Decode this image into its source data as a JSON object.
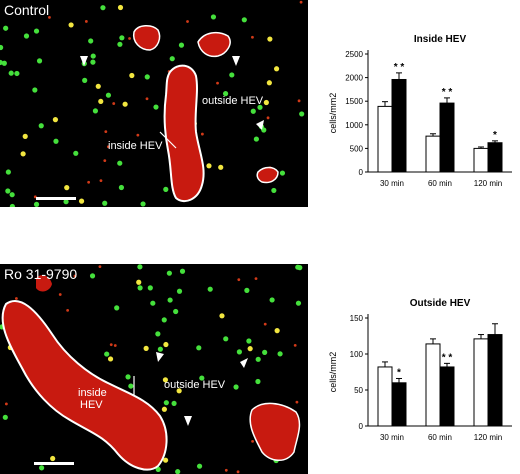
{
  "colors": {
    "nucleus": "#45e03c",
    "hev_red": "#c81a10",
    "outline": "#ffffff",
    "bar_black": "#000000",
    "bar_white": "#ffffff"
  },
  "micrographs": [
    {
      "label": "Control",
      "annotations": {
        "inside": "inside HEV",
        "outside": "outside HEV"
      }
    },
    {
      "label": "Ro 31-9790",
      "annotations": {
        "inside": "inside\nHEV",
        "outside": "outside HEV"
      }
    }
  ],
  "chart_data": [
    {
      "type": "bar",
      "title": "Inside HEV",
      "ylabel": "cells/mm2",
      "ylim": [
        0,
        2500
      ],
      "yticks": [
        0,
        500,
        1000,
        1500,
        2000,
        2500
      ],
      "categories": [
        "30 min",
        "60 min",
        "120 min"
      ],
      "series": [
        {
          "color": "#ffffff",
          "values": [
            1390,
            760,
            500
          ],
          "errors": [
            100,
            50,
            30
          ]
        },
        {
          "color": "#000000",
          "values": [
            1960,
            1460,
            620
          ],
          "errors": [
            140,
            110,
            40
          ]
        }
      ],
      "significance": [
        "* *",
        "* *",
        "*"
      ]
    },
    {
      "type": "bar",
      "title": "Outside HEV",
      "ylabel": "cells/mm2",
      "ylim": [
        0,
        150
      ],
      "yticks": [
        0,
        50,
        100,
        150
      ],
      "categories": [
        "30 min",
        "60 min",
        "120 min"
      ],
      "series": [
        {
          "color": "#ffffff",
          "values": [
            82,
            114,
            121
          ],
          "errors": [
            7,
            7,
            6
          ]
        },
        {
          "color": "#000000",
          "values": [
            60,
            82,
            127
          ],
          "errors": [
            6,
            5,
            15
          ]
        }
      ],
      "significance": [
        "*",
        "* *",
        ""
      ]
    }
  ]
}
